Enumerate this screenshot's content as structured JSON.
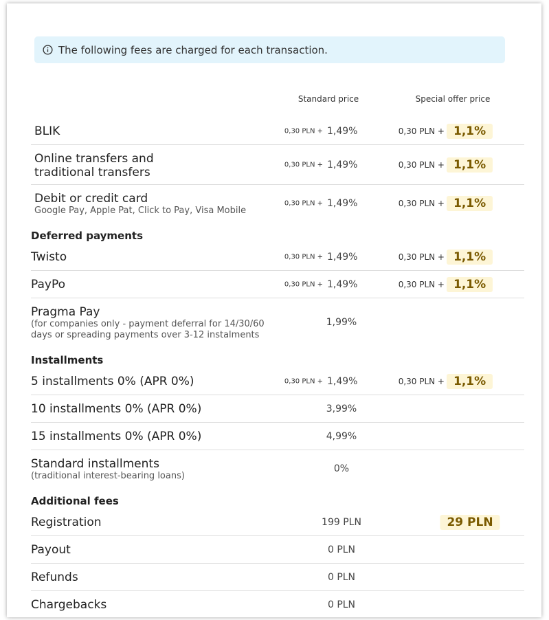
{
  "notice": "The following fees are charged for each transaction.",
  "table": {
    "headers": [
      "Standard price",
      "Special offer price"
    ],
    "sections": [
      {
        "rows": [
          {
            "name": "BLIK",
            "standard_prefix": "0,30 PLN +",
            "standard": "1,49%",
            "special_prefix": "0,30 PLN +",
            "special": "1,1%"
          },
          {
            "name": "Online transfers and\ntraditional transfers",
            "standard_prefix": "0,30 PLN +",
            "standard": "1,49%",
            "special_prefix": "0,30 PLN +",
            "special": "1,1%"
          },
          {
            "name": "Debit or credit card",
            "note": "Google Pay, Apple Pat, Click to Pay, Visa Mobile",
            "standard_prefix": "0,30 PLN +",
            "standard": "1,49%",
            "special_prefix": "0,30 PLN +",
            "special": "1,1%"
          }
        ]
      },
      {
        "title": "Deferred payments",
        "rows": [
          {
            "name": "Twisto",
            "standard_prefix": "0,30 PLN +",
            "standard": "1,49%",
            "special_prefix": "0,30 PLN +",
            "special": "1,1%"
          },
          {
            "name": "PayPo",
            "standard_prefix": "0,30 PLN +",
            "standard": "1,49%",
            "special_prefix": "0,30 PLN +",
            "special": "1,1%"
          },
          {
            "name": "Pragma Pay",
            "note": "(for companies only - payment deferral for 14/30/60\ndays or spreading payments over 3-12 instalments",
            "standard": "1,99%"
          }
        ]
      },
      {
        "title": "Installments",
        "rows": [
          {
            "name": "5 installments 0% (APR 0%)",
            "standard_prefix": "0,30 PLN +",
            "standard": "1,49%",
            "special_prefix": "0,30 PLN +",
            "special": "1,1%"
          },
          {
            "name": "10 installments 0% (APR 0%)",
            "standard": "3,99%"
          },
          {
            "name": "15 installments 0% (APR 0%)",
            "standard": "4,99%"
          },
          {
            "name": "Standard installments",
            "note": "(traditional interest-bearing loans)",
            "standard": "0%"
          }
        ]
      },
      {
        "title": "Additional fees",
        "rows": [
          {
            "name": "Registration",
            "standard": "199 PLN",
            "special": "29 PLN"
          },
          {
            "name": "Payout",
            "standard": "0 PLN"
          },
          {
            "name": "Refunds",
            "standard": "0 PLN"
          },
          {
            "name": "Chargebacks",
            "standard": "0 PLN"
          }
        ]
      }
    ]
  }
}
